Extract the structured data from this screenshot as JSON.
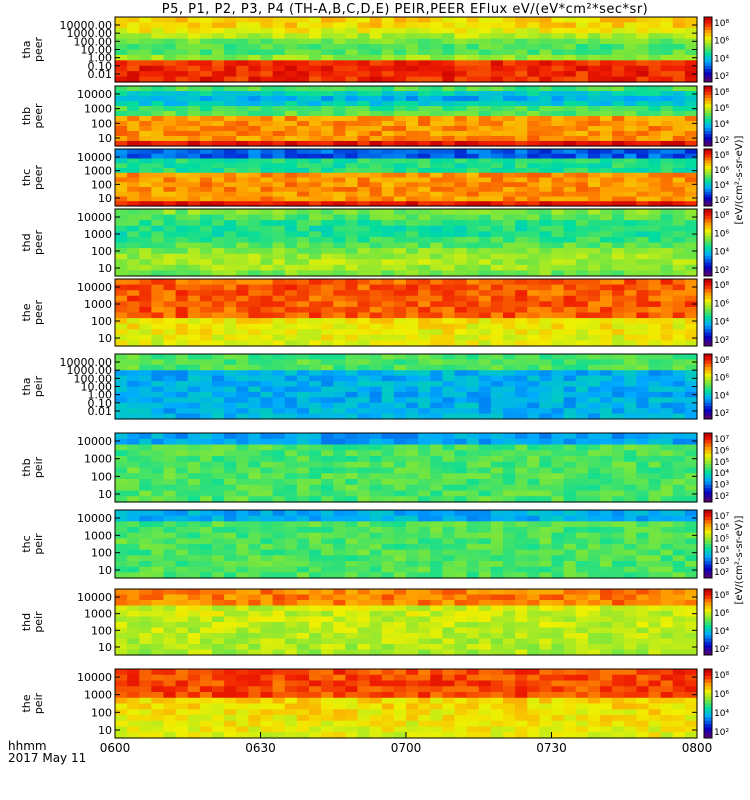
{
  "title": "P5, P1, P2, P3, P4 (TH-A,B,C,D,E) PEIR,PEER EFlux eV/(eV*cm²*sec*sr)",
  "x_axis": {
    "ticks": [
      "0600",
      "0630",
      "0700",
      "0730",
      "0800"
    ],
    "left_label": "hhmm",
    "date_label": "2017 May 11"
  },
  "colorbar_label_electron": "[eV/(cm²-s-sr-eV)]",
  "colorbar_label_ion": "[eV/(cm²-s-sr-eV)]",
  "chart_data": {
    "type": "heatmap",
    "x_range": [
      "0600",
      "0800"
    ],
    "panels": [
      {
        "label1": "tha",
        "label2": "peer",
        "yticks": [
          "10000.00",
          "1000.00",
          "100.00",
          "10.00",
          "1.00",
          "0.10",
          "0.01"
        ],
        "yrange": [
          0.01,
          20000
        ],
        "cbar_ticks": [
          "10⁸",
          "10⁶",
          "10⁴",
          "10²"
        ]
      },
      {
        "label1": "thb",
        "label2": "peer",
        "yticks": [
          "10000",
          "1000",
          "100",
          "10"
        ],
        "yrange": [
          7,
          20000
        ],
        "cbar_ticks": [
          "10⁸",
          "10⁶",
          "10⁴",
          "10²"
        ]
      },
      {
        "label1": "thc",
        "label2": "peer",
        "yticks": [
          "10000",
          "1000",
          "100",
          "10"
        ],
        "yrange": [
          7,
          20000
        ],
        "cbar_ticks": [
          "10⁸",
          "10⁶",
          "10⁴",
          "10²"
        ]
      },
      {
        "label1": "thd",
        "label2": "peer",
        "yticks": [
          "10000",
          "1000",
          "100",
          "10"
        ],
        "yrange": [
          7,
          20000
        ],
        "cbar_ticks": [
          "10⁸",
          "10⁶",
          "10⁴",
          "10²"
        ]
      },
      {
        "label1": "the",
        "label2": "peer",
        "yticks": [
          "10000",
          "1000",
          "100",
          "10"
        ],
        "yrange": [
          7,
          20000
        ],
        "cbar_ticks": [
          "10⁸",
          "10⁶",
          "10⁴",
          "10²"
        ]
      },
      {
        "label1": "tha",
        "label2": "peir",
        "yticks": [
          "10000.00",
          "1000.00",
          "100.00",
          "10.00",
          "1.00",
          "0.10",
          "0.01"
        ],
        "yrange": [
          0.01,
          20000
        ],
        "cbar_ticks": [
          "10⁸",
          "10⁶",
          "10⁴",
          "10²"
        ]
      },
      {
        "label1": "thb",
        "label2": "peir",
        "yticks": [
          "10000",
          "1000",
          "100",
          "10"
        ],
        "yrange": [
          7,
          20000
        ],
        "cbar_ticks": [
          "10⁷",
          "10⁶",
          "10⁵",
          "10⁴",
          "10³",
          "10²"
        ]
      },
      {
        "label1": "thc",
        "label2": "peir",
        "yticks": [
          "10000",
          "1000",
          "100",
          "10"
        ],
        "yrange": [
          7,
          20000
        ],
        "cbar_ticks": [
          "10⁷",
          "10⁶",
          "10⁵",
          "10⁴",
          "10³",
          "10²"
        ]
      },
      {
        "label1": "thd",
        "label2": "peir",
        "yticks": [
          "10000",
          "1000",
          "100",
          "10"
        ],
        "yrange": [
          7,
          20000
        ],
        "cbar_ticks": [
          "10⁸",
          "10⁶",
          "10⁴",
          "10²"
        ]
      },
      {
        "label1": "the",
        "label2": "peir",
        "yticks": [
          "10000",
          "1000",
          "100",
          "10"
        ],
        "yrange": [
          7,
          20000
        ],
        "cbar_ticks": [
          "10⁸",
          "10⁶",
          "10⁴",
          "10²"
        ]
      }
    ]
  }
}
